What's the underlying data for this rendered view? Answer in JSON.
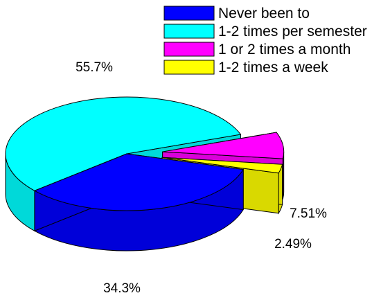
{
  "chart_data": {
    "type": "pie",
    "style": "3d-exploded",
    "title": "",
    "legend_position": "top-right",
    "slices": [
      {
        "label": "Never been to",
        "value": 34.3,
        "value_label": "34.3%",
        "color": "#0000FF"
      },
      {
        "label": "1-2 times per semester",
        "value": 55.7,
        "value_label": "55.7%",
        "color": "#00FFFF"
      },
      {
        "label": "1 or 2 times a month",
        "value": 7.51,
        "value_label": "7.51%",
        "color": "#FF00FF"
      },
      {
        "label": "1-2 times a week",
        "value": 2.49,
        "value_label": "2.49%",
        "color": "#FFFF00"
      }
    ]
  }
}
